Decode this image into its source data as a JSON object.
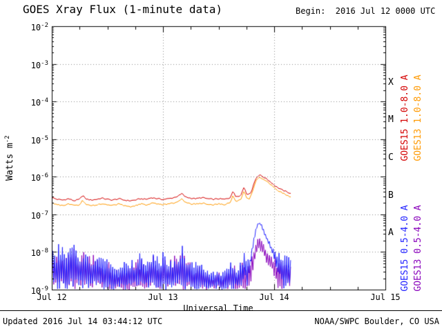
{
  "header": {
    "begin": "Begin:  2016 Jul 12 0000 UTC"
  },
  "footer": {
    "updated": "Updated 2016 Jul 14 03:44:12 UTC",
    "credit": "NOAA/SWPC Boulder, CO USA"
  },
  "chart_data": {
    "type": "line",
    "title": "GOES Xray Flux (1-minute data)",
    "xlabel": "Universal Time",
    "ylabel_base": "Watts m",
    "ylabel_exp": "-2",
    "x_range_days": [
      0,
      3
    ],
    "x_minor_step_days": 0.25,
    "x_ticks": [
      {
        "t": 0,
        "label": "Jul 12"
      },
      {
        "t": 1,
        "label": "Jul 13"
      },
      {
        "t": 2,
        "label": "Jul 14"
      },
      {
        "t": 3,
        "label": "Jul 15"
      }
    ],
    "y_log_range_exp": [
      -9,
      -2
    ],
    "y_ticks_exp": [
      -2,
      -3,
      -4,
      -5,
      -6,
      -7,
      -8,
      -9
    ],
    "flare_classes": [
      {
        "label": "X",
        "center_exp": -3.5
      },
      {
        "label": "M",
        "center_exp": -4.5
      },
      {
        "label": "C",
        "center_exp": -5.5
      },
      {
        "label": "B",
        "center_exp": -6.5
      },
      {
        "label": "A",
        "center_exp": -7.5
      }
    ],
    "colors": {
      "axis": "#000000",
      "grid": "#888888",
      "background": "#ffffff",
      "goes15_long": "#d40000",
      "goes13_long": "#ff9900",
      "goes15_short": "#2222ff",
      "goes13_short": "#8800bb"
    },
    "series": [
      {
        "name": "GOES15 1.0-8.0 A",
        "color": "#d40000",
        "kind": "line",
        "points": [
          [
            0.0,
            2.8e-07
          ],
          [
            0.05,
            2.5e-07
          ],
          [
            0.1,
            2.4e-07
          ],
          [
            0.15,
            2.6e-07
          ],
          [
            0.2,
            2.3e-07
          ],
          [
            0.25,
            2.5e-07
          ],
          [
            0.28,
            3.3e-07
          ],
          [
            0.3,
            2.6e-07
          ],
          [
            0.35,
            2.4e-07
          ],
          [
            0.4,
            2.5e-07
          ],
          [
            0.45,
            2.7e-07
          ],
          [
            0.5,
            2.5e-07
          ],
          [
            0.55,
            2.4e-07
          ],
          [
            0.6,
            2.6e-07
          ],
          [
            0.65,
            2.4e-07
          ],
          [
            0.7,
            2.3e-07
          ],
          [
            0.75,
            2.4e-07
          ],
          [
            0.8,
            2.6e-07
          ],
          [
            0.85,
            2.5e-07
          ],
          [
            0.9,
            2.8e-07
          ],
          [
            0.95,
            2.6e-07
          ],
          [
            1.0,
            2.5e-07
          ],
          [
            1.05,
            2.6e-07
          ],
          [
            1.1,
            2.8e-07
          ],
          [
            1.15,
            3.2e-07
          ],
          [
            1.17,
            3.6e-07
          ],
          [
            1.2,
            2.9e-07
          ],
          [
            1.25,
            2.7e-07
          ],
          [
            1.3,
            2.6e-07
          ],
          [
            1.35,
            2.8e-07
          ],
          [
            1.4,
            2.6e-07
          ],
          [
            1.45,
            2.5e-07
          ],
          [
            1.5,
            2.6e-07
          ],
          [
            1.55,
            2.5e-07
          ],
          [
            1.6,
            2.7e-07
          ],
          [
            1.63,
            4.2e-07
          ],
          [
            1.65,
            3e-07
          ],
          [
            1.7,
            3.2e-07
          ],
          [
            1.73,
            5.5e-07
          ],
          [
            1.75,
            3.6e-07
          ],
          [
            1.78,
            3.4e-07
          ],
          [
            1.8,
            4.5e-07
          ],
          [
            1.82,
            7e-07
          ],
          [
            1.84,
            9.5e-07
          ],
          [
            1.86,
            1.1e-06
          ],
          [
            1.88,
            1.08e-06
          ],
          [
            1.9,
            1e-06
          ],
          [
            1.92,
            9.2e-07
          ],
          [
            1.95,
            8e-07
          ],
          [
            1.98,
            6.8e-07
          ],
          [
            2.0,
            6e-07
          ],
          [
            2.03,
            5.2e-07
          ],
          [
            2.06,
            4.6e-07
          ],
          [
            2.09,
            4.2e-07
          ],
          [
            2.12,
            3.9e-07
          ],
          [
            2.14,
            3.7e-07
          ],
          [
            2.156,
            3.6e-07
          ]
        ]
      },
      {
        "name": "GOES13 1.0-8.0 A",
        "color": "#ff9900",
        "kind": "line",
        "points": [
          [
            0.0,
            2e-07
          ],
          [
            0.05,
            1.8e-07
          ],
          [
            0.1,
            1.7e-07
          ],
          [
            0.15,
            1.9e-07
          ],
          [
            0.2,
            1.7e-07
          ],
          [
            0.25,
            1.8e-07
          ],
          [
            0.28,
            2.4e-07
          ],
          [
            0.3,
            1.9e-07
          ],
          [
            0.35,
            1.7e-07
          ],
          [
            0.4,
            1.8e-07
          ],
          [
            0.45,
            1.9e-07
          ],
          [
            0.5,
            1.8e-07
          ],
          [
            0.55,
            1.7e-07
          ],
          [
            0.6,
            1.9e-07
          ],
          [
            0.65,
            1.7e-07
          ],
          [
            0.7,
            1.6e-07
          ],
          [
            0.75,
            1.7e-07
          ],
          [
            0.8,
            1.9e-07
          ],
          [
            0.85,
            1.8e-07
          ],
          [
            0.9,
            2e-07
          ],
          [
            0.95,
            1.9e-07
          ],
          [
            1.0,
            1.8e-07
          ],
          [
            1.05,
            1.9e-07
          ],
          [
            1.1,
            2e-07
          ],
          [
            1.15,
            2.3e-07
          ],
          [
            1.17,
            2.6e-07
          ],
          [
            1.2,
            2.1e-07
          ],
          [
            1.25,
            1.9e-07
          ],
          [
            1.3,
            1.9e-07
          ],
          [
            1.35,
            2e-07
          ],
          [
            1.4,
            1.9e-07
          ],
          [
            1.45,
            1.8e-07
          ],
          [
            1.5,
            1.9e-07
          ],
          [
            1.55,
            1.8e-07
          ],
          [
            1.6,
            2e-07
          ],
          [
            1.63,
            3.1e-07
          ],
          [
            1.65,
            2.2e-07
          ],
          [
            1.7,
            2.4e-07
          ],
          [
            1.73,
            4.2e-07
          ],
          [
            1.75,
            2.7e-07
          ],
          [
            1.78,
            2.6e-07
          ],
          [
            1.8,
            3.6e-07
          ],
          [
            1.82,
            5.8e-07
          ],
          [
            1.84,
            8e-07
          ],
          [
            1.86,
            9.3e-07
          ],
          [
            1.88,
            9.1e-07
          ],
          [
            1.9,
            8.5e-07
          ],
          [
            1.92,
            7.8e-07
          ],
          [
            1.95,
            6.8e-07
          ],
          [
            1.98,
            5.8e-07
          ],
          [
            2.0,
            5.1e-07
          ],
          [
            2.03,
            4.4e-07
          ],
          [
            2.06,
            3.9e-07
          ],
          [
            2.09,
            3.5e-07
          ],
          [
            2.12,
            3.2e-07
          ],
          [
            2.14,
            3e-07
          ],
          [
            2.156,
            2.9e-07
          ]
        ]
      },
      {
        "name": "GOES15 0.5-4.0 A",
        "color": "#2222ff",
        "kind": "noise",
        "envelope": [
          [
            0.0,
            1e-09,
            1.2e-08
          ],
          [
            0.05,
            1e-09,
            1.5e-08
          ],
          [
            0.1,
            1e-09,
            2.2e-08
          ],
          [
            0.15,
            1e-09,
            1.4e-08
          ],
          [
            0.2,
            1e-09,
            1.8e-08
          ],
          [
            0.25,
            1e-09,
            1.2e-08
          ],
          [
            0.3,
            1e-09,
            1.6e-08
          ],
          [
            0.35,
            1e-09,
            1e-08
          ],
          [
            0.4,
            1e-09,
            1.3e-08
          ],
          [
            0.45,
            1e-09,
            9e-09
          ],
          [
            0.5,
            1e-09,
            7e-09
          ],
          [
            0.55,
            1e-09,
            5e-09
          ],
          [
            0.6,
            1e-09,
            4e-09
          ],
          [
            0.65,
            1e-09,
            6e-09
          ],
          [
            0.7,
            1e-09,
            5e-09
          ],
          [
            0.75,
            1e-09,
            8e-09
          ],
          [
            0.8,
            1e-09,
            1e-08
          ],
          [
            0.85,
            1e-09,
            7e-09
          ],
          [
            0.9,
            1e-09,
            1.2e-08
          ],
          [
            0.95,
            1e-09,
            9e-09
          ],
          [
            1.0,
            1e-09,
            1.1e-08
          ],
          [
            1.05,
            1e-09,
            8e-09
          ],
          [
            1.1,
            1e-09,
            1e-08
          ],
          [
            1.15,
            1e-09,
            1.6e-08
          ],
          [
            1.17,
            1e-09,
            2e-08
          ],
          [
            1.2,
            1e-09,
            1e-08
          ],
          [
            1.25,
            1e-09,
            7e-09
          ],
          [
            1.3,
            1e-09,
            6e-09
          ],
          [
            1.35,
            1e-09,
            5e-09
          ],
          [
            1.4,
            1e-09,
            4e-09
          ],
          [
            1.45,
            1e-09,
            3e-09
          ],
          [
            1.5,
            1e-09,
            3.5e-09
          ],
          [
            1.55,
            1e-09,
            3e-09
          ],
          [
            1.6,
            1e-09,
            5e-09
          ],
          [
            1.63,
            1e-09,
            8e-09
          ],
          [
            1.66,
            1e-09,
            4e-09
          ],
          [
            1.7,
            1e-09,
            6e-09
          ],
          [
            1.73,
            2e-09,
            1.2e-08
          ],
          [
            1.76,
            1e-09,
            6e-09
          ],
          [
            1.78,
            3e-09,
            8e-09
          ],
          [
            1.8,
            8e-09,
            1.5e-08
          ],
          [
            1.82,
            2e-08,
            3e-08
          ],
          [
            1.84,
            4e-08,
            5e-08
          ],
          [
            1.86,
            5.5e-08,
            6.5e-08
          ],
          [
            1.88,
            5e-08,
            6e-08
          ],
          [
            1.9,
            3.5e-08,
            4.5e-08
          ],
          [
            1.92,
            2.5e-08,
            3.2e-08
          ],
          [
            1.95,
            1.5e-08,
            2.2e-08
          ],
          [
            1.98,
            9e-09,
            1.5e-08
          ],
          [
            2.0,
            6e-09,
            1.2e-08
          ],
          [
            2.03,
            3e-09,
            1e-08
          ],
          [
            2.06,
            2e-09,
            9e-09
          ],
          [
            2.09,
            1e-09,
            8e-09
          ],
          [
            2.12,
            1e-09,
            9e-09
          ],
          [
            2.14,
            1e-09,
            7e-09
          ],
          [
            2.156,
            1e-09,
            6e-09
          ]
        ]
      },
      {
        "name": "GOES13 0.5-4.0 A",
        "color": "#8800bb",
        "kind": "noise",
        "envelope": [
          [
            0.0,
            1e-09,
            1e-08
          ],
          [
            0.05,
            1e-09,
            1.2e-08
          ],
          [
            0.1,
            1e-09,
            1.5e-08
          ],
          [
            0.15,
            1e-09,
            1e-08
          ],
          [
            0.2,
            1e-09,
            1.4e-08
          ],
          [
            0.25,
            1e-09,
            9e-09
          ],
          [
            0.3,
            1e-09,
            1.2e-08
          ],
          [
            0.35,
            1e-09,
            8e-09
          ],
          [
            0.4,
            1e-09,
            1e-08
          ],
          [
            0.45,
            1e-09,
            7e-09
          ],
          [
            0.5,
            1e-09,
            6e-09
          ],
          [
            0.55,
            1e-09,
            4e-09
          ],
          [
            0.6,
            1e-09,
            3.5e-09
          ],
          [
            0.65,
            1e-09,
            5e-09
          ],
          [
            0.7,
            1e-09,
            4e-09
          ],
          [
            0.75,
            1e-09,
            6e-09
          ],
          [
            0.8,
            1e-09,
            8e-09
          ],
          [
            0.85,
            1e-09,
            6e-09
          ],
          [
            0.9,
            1e-09,
            9e-09
          ],
          [
            0.95,
            1e-09,
            7e-09
          ],
          [
            1.0,
            1e-09,
            9e-09
          ],
          [
            1.05,
            1e-09,
            6e-09
          ],
          [
            1.1,
            1e-09,
            8e-09
          ],
          [
            1.15,
            1e-09,
            1.2e-08
          ],
          [
            1.17,
            1e-09,
            1.5e-08
          ],
          [
            1.2,
            1e-09,
            8e-09
          ],
          [
            1.25,
            1e-09,
            5e-09
          ],
          [
            1.3,
            1e-09,
            4.5e-09
          ],
          [
            1.35,
            1e-09,
            4e-09
          ],
          [
            1.4,
            1e-09,
            3e-09
          ],
          [
            1.45,
            1e-09,
            2.5e-09
          ],
          [
            1.5,
            1e-09,
            3e-09
          ],
          [
            1.55,
            1e-09,
            2.5e-09
          ],
          [
            1.6,
            1e-09,
            4e-09
          ],
          [
            1.63,
            1e-09,
            6e-09
          ],
          [
            1.66,
            1e-09,
            3e-09
          ],
          [
            1.7,
            1e-09,
            5e-09
          ],
          [
            1.73,
            1e-09,
            9e-09
          ],
          [
            1.76,
            1e-09,
            5e-09
          ],
          [
            1.78,
            1e-09,
            6e-09
          ],
          [
            1.8,
            2e-09,
            9e-09
          ],
          [
            1.82,
            4e-09,
            1.4e-08
          ],
          [
            1.84,
            8e-09,
            2e-08
          ],
          [
            1.86,
            1.2e-08,
            2.4e-08
          ],
          [
            1.88,
            1e-08,
            2.2e-08
          ],
          [
            1.9,
            8e-09,
            1.8e-08
          ],
          [
            1.92,
            6e-09,
            1.4e-08
          ],
          [
            1.95,
            4e-09,
            1.1e-08
          ],
          [
            1.98,
            3e-09,
            9e-09
          ],
          [
            2.0,
            2e-09,
            8e-09
          ],
          [
            2.03,
            1e-09,
            7e-09
          ],
          [
            2.06,
            1e-09,
            6e-09
          ],
          [
            2.09,
            1e-09,
            6e-09
          ],
          [
            2.12,
            1e-09,
            7e-09
          ],
          [
            2.14,
            1e-09,
            5e-09
          ],
          [
            2.156,
            1e-09,
            5e-09
          ]
        ]
      }
    ],
    "legend_note": "series order matches legend columns left-to-right, top group then bottom group"
  }
}
